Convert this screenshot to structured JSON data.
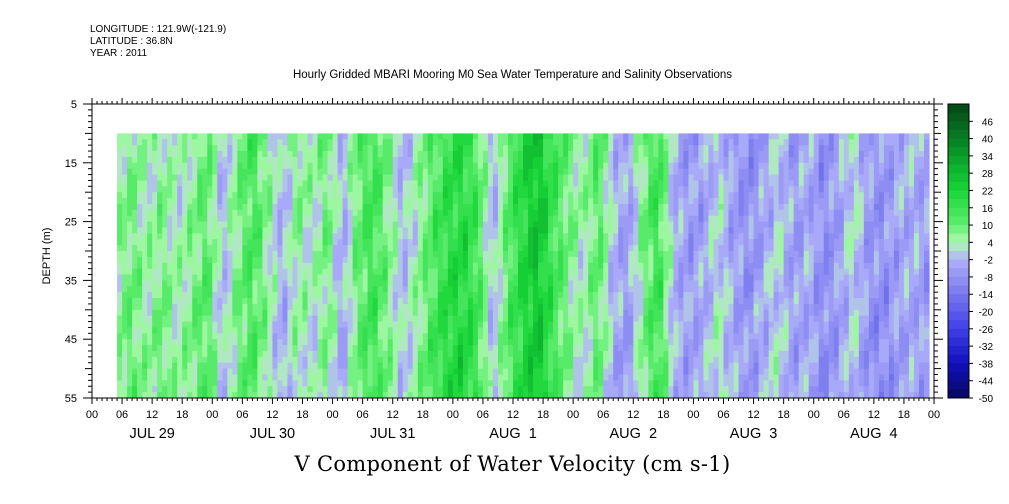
{
  "header": {
    "longitude": "LONGITUDE : 121.9W(-121.9)",
    "latitude": "LATITUDE : 36.8N",
    "year": "YEAR : 2011",
    "title": "Hourly Gridded MBARI Mooring M0 Sea Water Temperature and Salinity Observations"
  },
  "chart_data": {
    "type": "heatmap",
    "title": "Hourly Gridded MBARI Mooring M0 Sea Water Temperature and Salinity Observations",
    "xlabel": "V Component of Water Velocity (cm s-1)",
    "ylabel": "DEPTH (m)",
    "ylim": [
      5,
      55
    ],
    "y_inverted": true,
    "y_ticks": [
      "5",
      "15",
      "25",
      "35",
      "45",
      "55"
    ],
    "x_hour_ticks": [
      "00",
      "06",
      "12",
      "18",
      "00",
      "06",
      "12",
      "18",
      "00",
      "06",
      "12",
      "18",
      "00",
      "06",
      "12",
      "18",
      "00",
      "06",
      "12",
      "18",
      "00",
      "06",
      "12",
      "18",
      "00",
      "06",
      "12",
      "18",
      "00"
    ],
    "x_day_labels": [
      "JUL 29",
      "JUL 30",
      "JUL 31",
      "AUG  1",
      "AUG  2",
      "AUG  3",
      "AUG  4"
    ],
    "x_range_hours": [
      0,
      168
    ],
    "data_start_hour": 5,
    "data_end_hour": 167,
    "data_depth_range": [
      10,
      55
    ],
    "colorbar": {
      "labels": [
        "46",
        "40",
        "34",
        "28",
        "22",
        "16",
        "10",
        "4",
        "-2",
        "-8",
        "-14",
        "-20",
        "-26",
        "-32",
        "-38",
        "-44",
        "-50"
      ],
      "min": -50,
      "max": 52,
      "step": 3
    },
    "v_profile": {
      "hours": [
        5,
        8,
        11,
        14,
        17,
        20,
        23,
        26,
        29,
        32,
        35,
        38,
        41,
        44,
        47,
        50,
        53,
        56,
        59,
        62,
        65,
        68,
        71,
        74,
        77,
        80,
        83,
        86,
        89,
        92,
        95,
        98,
        101,
        104,
        107,
        110,
        113,
        116,
        119,
        122,
        125,
        128,
        131,
        134,
        137,
        140,
        143,
        146,
        149,
        152,
        155,
        158,
        161,
        164,
        167
      ],
      "values": [
        6,
        9,
        4,
        8,
        3,
        7,
        12,
        -2,
        8,
        14,
        6,
        -3,
        7,
        2,
        9,
        -4,
        10,
        15,
        8,
        -2,
        5,
        13,
        18,
        20,
        14,
        -3,
        12,
        20,
        26,
        15,
        8,
        3,
        12,
        -2,
        -6,
        8,
        16,
        -2,
        -6,
        -4,
        2,
        -5,
        -8,
        -4,
        1,
        -6,
        -3,
        -9,
        -5,
        2,
        -7,
        -8,
        -4,
        -3,
        -6
      ]
    },
    "grid": false,
    "legend": "right"
  }
}
